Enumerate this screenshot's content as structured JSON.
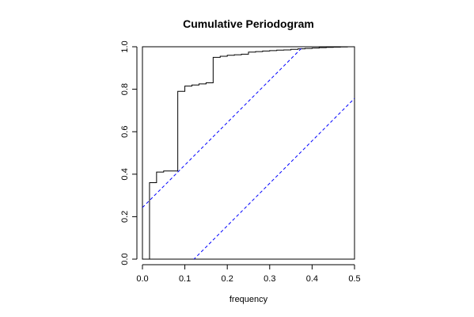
{
  "chart_data": {
    "type": "line",
    "title": "Cumulative Periodogram",
    "xlabel": "frequency",
    "ylabel": "",
    "xlim": [
      0,
      0.5
    ],
    "ylim": [
      0,
      1
    ],
    "x_ticks": [
      0.0,
      0.1,
      0.2,
      0.3,
      0.4,
      0.5
    ],
    "x_tick_labels": [
      "0.0",
      "0.1",
      "0.2",
      "0.3",
      "0.4",
      "0.5"
    ],
    "y_ticks": [
      0.0,
      0.2,
      0.4,
      0.6,
      0.8,
      1.0
    ],
    "y_tick_labels": [
      "0.0",
      "0.2",
      "0.4",
      "0.6",
      "0.8",
      "1.0"
    ],
    "grid": false,
    "series": [
      {
        "style": "step",
        "color": "#000000",
        "x": [
          0.0167,
          0.0333,
          0.05,
          0.0667,
          0.0833,
          0.1,
          0.1167,
          0.1333,
          0.15,
          0.1667,
          0.1833,
          0.2,
          0.2167,
          0.2333,
          0.25,
          0.2667,
          0.2833,
          0.3,
          0.3167,
          0.3333,
          0.35,
          0.3667,
          0.3833,
          0.4,
          0.4167,
          0.4333,
          0.45,
          0.4667,
          0.4833,
          0.5
        ],
        "y": [
          0.36,
          0.41,
          0.415,
          0.415,
          0.79,
          0.815,
          0.82,
          0.825,
          0.83,
          0.95,
          0.955,
          0.96,
          0.962,
          0.965,
          0.975,
          0.977,
          0.98,
          0.982,
          0.984,
          0.985,
          0.988,
          0.99,
          0.992,
          0.994,
          0.996,
          0.997,
          0.998,
          0.999,
          1.0,
          1.0
        ]
      },
      {
        "style": "dashed",
        "color": "#0000ff",
        "x": [
          0.0,
          0.5
        ],
        "y": [
          0.243,
          1.243
        ]
      },
      {
        "style": "dashed",
        "color": "#0000ff",
        "x": [
          0.0,
          0.5
        ],
        "y": [
          -0.243,
          0.757
        ]
      }
    ]
  }
}
